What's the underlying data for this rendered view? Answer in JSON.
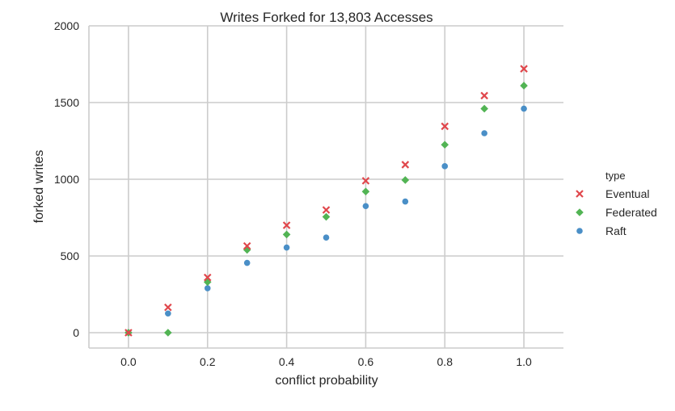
{
  "chart_data": {
    "type": "scatter",
    "title": "Writes Forked for 13,803 Accesses",
    "xlabel": "conflict probability",
    "ylabel": "forked writes",
    "xlim": [
      -0.1,
      1.1
    ],
    "ylim": [
      -100,
      2000
    ],
    "xticks": [
      0.0,
      0.2,
      0.4,
      0.6,
      0.8,
      1.0
    ],
    "xtick_labels": [
      "0.0",
      "0.2",
      "0.4",
      "0.6",
      "0.8",
      "1.0"
    ],
    "yticks": [
      0,
      500,
      1000,
      1500,
      2000
    ],
    "ytick_labels": [
      "0",
      "500",
      "1000",
      "1500",
      "2000"
    ],
    "grid": true,
    "legend_title": "type",
    "legend_position": "right",
    "x": [
      0.0,
      0.1,
      0.2,
      0.3,
      0.4,
      0.5,
      0.6,
      0.7,
      0.8,
      0.9,
      1.0
    ],
    "series": [
      {
        "name": "Eventual",
        "marker": "x",
        "color": "#e0474c",
        "values": [
          0,
          165,
          360,
          565,
          700,
          800,
          990,
          1095,
          1345,
          1545,
          1720
        ]
      },
      {
        "name": "Federated",
        "marker": "diamond",
        "color": "#52b454",
        "values": [
          0,
          0,
          330,
          540,
          640,
          755,
          920,
          995,
          1225,
          1460,
          1610
        ]
      },
      {
        "name": "Raft",
        "marker": "circle",
        "color": "#4a8fc7",
        "values": [
          0,
          125,
          290,
          455,
          555,
          620,
          825,
          855,
          1085,
          1300,
          1460
        ]
      }
    ]
  }
}
